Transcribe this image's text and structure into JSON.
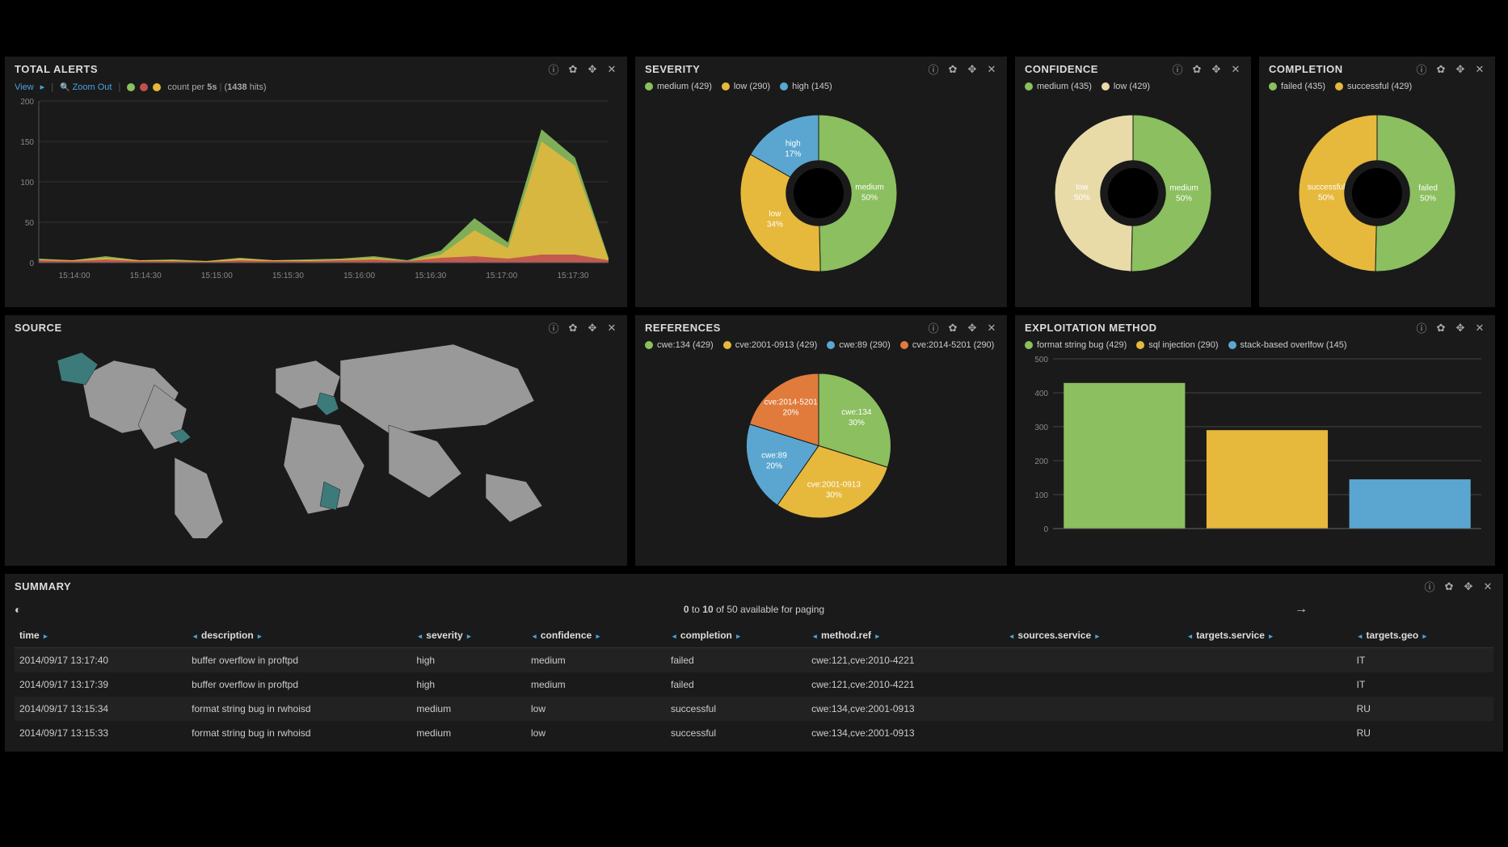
{
  "colors": {
    "green": "#8bbf5f",
    "yellow": "#e6b83c",
    "blue": "#5aa6d0",
    "orange": "#e07b3c",
    "cream": "#e8dba8",
    "red": "#c05050",
    "mapBase": "#999999",
    "mapHighlight": "#3d7a7a",
    "grid": "#444444",
    "text": "#cccccc",
    "bg": "#1a1a1a"
  },
  "totalAlerts": {
    "title": "TOTAL ALERTS",
    "viewLink": "View",
    "zoomLink": "Zoom Out",
    "legendSwatches": [
      "#8bbf5f",
      "#c05050",
      "#e6b83c"
    ],
    "countLabel": "count per",
    "countInterval": "5s",
    "hitsCount": "1438",
    "hitsLabel": "hits",
    "yAxis": {
      "max": 200,
      "ticks": [
        0,
        50,
        100,
        150,
        200
      ]
    },
    "xTicks": [
      "15:14:00",
      "15:14:30",
      "15:15:00",
      "15:15:30",
      "15:16:00",
      "15:16:30",
      "15:17:00",
      "15:17:30"
    ],
    "seriesStack": {
      "x": [
        0,
        1,
        2,
        3,
        4,
        5,
        6,
        7,
        8,
        9,
        10,
        11,
        12,
        13,
        14,
        15,
        16,
        17
      ],
      "green": [
        5,
        3,
        8,
        3,
        4,
        2,
        6,
        3,
        4,
        5,
        8,
        3,
        15,
        55,
        25,
        165,
        130,
        6
      ],
      "red": [
        3,
        2,
        4,
        2,
        2,
        1,
        3,
        2,
        2,
        3,
        4,
        2,
        6,
        8,
        5,
        10,
        10,
        3
      ],
      "yellow": [
        4,
        3,
        6,
        3,
        3,
        2,
        5,
        3,
        3,
        4,
        6,
        2,
        10,
        40,
        18,
        150,
        120,
        4
      ]
    }
  },
  "severity": {
    "title": "SEVERITY",
    "legend": [
      {
        "label": "medium (429)",
        "color": "#8bbf5f"
      },
      {
        "label": "low (290)",
        "color": "#e6b83c"
      },
      {
        "label": "high (145)",
        "color": "#5aa6d0"
      }
    ],
    "slices": [
      {
        "label": "medium",
        "pct": "50%",
        "value": 429,
        "color": "#8bbf5f"
      },
      {
        "label": "low",
        "pct": "34%",
        "value": 290,
        "color": "#e6b83c"
      },
      {
        "label": "high",
        "pct": "17%",
        "value": 145,
        "color": "#5aa6d0"
      }
    ],
    "donut": true
  },
  "confidence": {
    "title": "CONFIDENCE",
    "legend": [
      {
        "label": "medium (435)",
        "color": "#8bbf5f"
      },
      {
        "label": "low (429)",
        "color": "#e8dba8"
      }
    ],
    "slices": [
      {
        "label": "medium",
        "pct": "50%",
        "value": 435,
        "color": "#8bbf5f"
      },
      {
        "label": "low",
        "pct": "50%",
        "value": 429,
        "color": "#e8dba8"
      }
    ],
    "donut": true
  },
  "completion": {
    "title": "COMPLETION",
    "legend": [
      {
        "label": "failed (435)",
        "color": "#8bbf5f"
      },
      {
        "label": "successful (429)",
        "color": "#e6b83c"
      }
    ],
    "slices": [
      {
        "label": "failed",
        "pct": "50%",
        "value": 435,
        "color": "#8bbf5f"
      },
      {
        "label": "successful",
        "pct": "50%",
        "value": 429,
        "color": "#e6b83c"
      }
    ],
    "donut": true
  },
  "source": {
    "title": "SOURCE",
    "highlightedRegions": [
      "Alaska-area",
      "Caribbean",
      "Balkans",
      "Southern-Africa"
    ]
  },
  "references": {
    "title": "REFERENCES",
    "legend": [
      {
        "label": "cwe:134 (429)",
        "color": "#8bbf5f"
      },
      {
        "label": "cve:2001-0913 (429)",
        "color": "#e6b83c"
      },
      {
        "label": "cwe:89 (290)",
        "color": "#5aa6d0"
      },
      {
        "label": "cve:2014-5201 (290)",
        "color": "#e07b3c"
      }
    ],
    "slices": [
      {
        "label": "cwe:134",
        "pct": "30%",
        "value": 429,
        "color": "#8bbf5f"
      },
      {
        "label": "cve:2001-0913",
        "pct": "30%",
        "value": 429,
        "color": "#e6b83c"
      },
      {
        "label": "cwe:89",
        "pct": "20%",
        "value": 290,
        "color": "#5aa6d0"
      },
      {
        "label": "cve:2014-5201",
        "pct": "20%",
        "value": 290,
        "color": "#e07b3c"
      }
    ],
    "donut": false
  },
  "exploitMethod": {
    "title": "EXPLOITATION METHOD",
    "legend": [
      {
        "label": "format string bug (429)",
        "color": "#8bbf5f"
      },
      {
        "label": "sql injection (290)",
        "color": "#e6b83c"
      },
      {
        "label": "stack-based overlfow (145)",
        "color": "#5aa6d0"
      }
    ],
    "yAxis": {
      "max": 500,
      "ticks": [
        0,
        100,
        200,
        300,
        400,
        500
      ]
    },
    "bars": [
      {
        "label": "format string bug",
        "value": 429,
        "color": "#8bbf5f"
      },
      {
        "label": "sql injection",
        "value": 290,
        "color": "#e6b83c"
      },
      {
        "label": "stack-based overlfow",
        "value": 145,
        "color": "#5aa6d0"
      }
    ]
  },
  "summary": {
    "title": "SUMMARY",
    "pagerFrom": "0",
    "pagerTo": "10",
    "pagerTotal": "50",
    "pagerLabel": "available for paging",
    "pagerOf": "of",
    "pagerToWord": "to",
    "columns": [
      "time",
      "description",
      "severity",
      "confidence",
      "completion",
      "method.ref",
      "sources.service",
      "targets.service",
      "targets.geo"
    ],
    "rows": [
      [
        "2014/09/17 13:17:40",
        "buffer overflow in proftpd",
        "high",
        "medium",
        "failed",
        "cwe:121,cve:2010-4221",
        "",
        "",
        "IT"
      ],
      [
        "2014/09/17 13:17:39",
        "buffer overflow in proftpd",
        "high",
        "medium",
        "failed",
        "cwe:121,cve:2010-4221",
        "",
        "",
        "IT"
      ],
      [
        "2014/09/17 13:15:34",
        "format string bug in rwhoisd",
        "medium",
        "low",
        "successful",
        "cwe:134,cve:2001-0913",
        "",
        "",
        "RU"
      ],
      [
        "2014/09/17 13:15:33",
        "format string bug in rwhoisd",
        "medium",
        "low",
        "successful",
        "cwe:134,cve:2001-0913",
        "",
        "",
        "RU"
      ]
    ]
  }
}
